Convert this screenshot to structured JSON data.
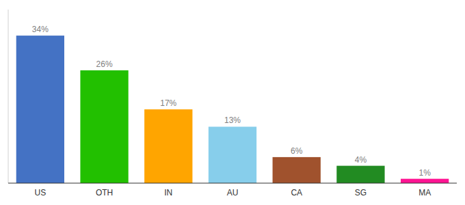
{
  "chart_data": {
    "type": "bar",
    "categories": [
      "US",
      "OTH",
      "IN",
      "AU",
      "CA",
      "SG",
      "MA"
    ],
    "values": [
      34,
      26,
      17,
      13,
      6,
      4,
      1
    ],
    "value_labels": [
      "34%",
      "26%",
      "17%",
      "13%",
      "6%",
      "4%",
      "1%"
    ],
    "colors": [
      "#4472C4",
      "#22C000",
      "#FFA500",
      "#87CEEB",
      "#A0522D",
      "#228B22",
      "#FF1493"
    ],
    "ylim": [
      0,
      40
    ],
    "data_labels": true,
    "tick_labels": "x"
  }
}
